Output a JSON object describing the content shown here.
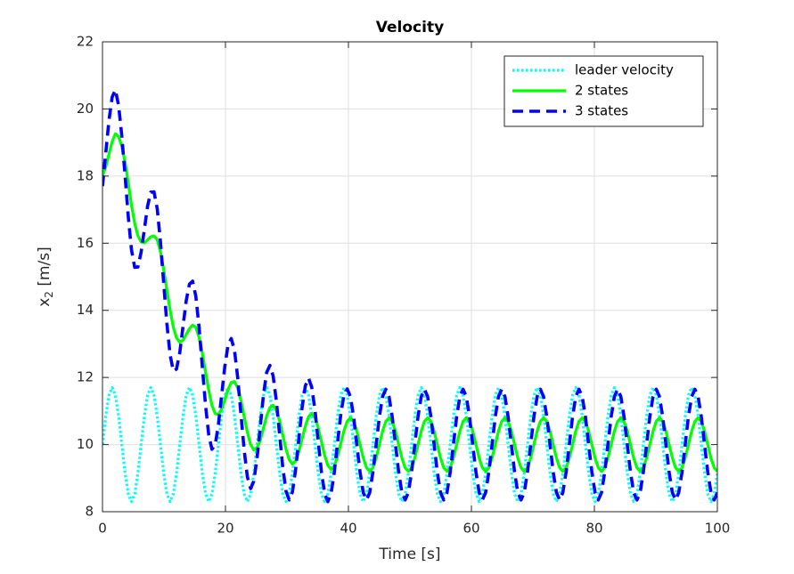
{
  "chart_data": {
    "type": "line",
    "title": "Velocity",
    "xlabel": "Time [s]",
    "ylabel": "x_2 [m/s]",
    "xlim": [
      0,
      100
    ],
    "ylim": [
      8,
      22
    ],
    "xticks": [
      0,
      20,
      40,
      60,
      80,
      100
    ],
    "yticks": [
      8,
      10,
      12,
      14,
      16,
      18,
      20,
      22
    ],
    "grid": true,
    "legend": "northeast",
    "x": [
      0,
      0.52,
      1.05,
      1.57,
      2.09,
      2.62,
      3.14,
      3.67,
      4.19,
      4.71,
      5.24,
      5.76,
      6.28,
      6.81,
      7.33,
      7.85,
      8.38,
      8.9,
      9.42,
      9.95,
      10.47,
      11,
      11.52,
      12.04,
      12.57,
      13.09,
      13.61,
      14.14,
      14.66,
      15.18,
      15.71,
      16.23,
      16.76,
      17.28,
      17.8,
      18.33,
      18.85,
      19.37,
      19.9,
      20.42,
      20.94,
      21.47,
      21.99,
      22.51,
      23.04,
      23.56,
      24.09,
      24.61,
      25.13,
      25.66,
      26.18,
      26.7,
      27.23,
      27.75,
      28.27,
      28.8,
      29.32,
      29.85,
      30.37,
      30.89,
      31.42,
      31.94,
      32.46,
      32.99,
      33.51,
      34.03,
      34.56,
      35.08,
      35.6,
      36.13,
      36.65,
      37.18,
      37.7,
      38.22,
      38.75,
      39.27,
      39.79,
      40.32,
      40.84,
      41.36,
      41.89,
      42.41,
      42.94,
      43.46,
      43.98,
      44.51,
      45.03,
      45.55,
      46.08,
      46.6,
      47.12,
      47.65,
      48.17,
      48.69,
      49.22,
      49.74,
      50.27,
      50.79,
      51.31,
      51.84,
      52.36,
      52.88,
      53.41,
      53.93,
      54.45,
      54.98,
      55.5,
      56.03,
      56.55,
      57.07,
      57.6,
      58.12,
      58.64,
      59.17,
      59.69,
      60.21,
      60.74,
      61.26,
      61.78,
      62.31,
      62.83,
      63.36,
      63.88,
      64.4,
      64.93,
      65.45,
      65.97,
      66.5,
      67.02,
      67.54,
      68.07,
      68.59,
      69.12,
      69.64,
      70.16,
      70.69,
      71.21,
      71.73,
      72.26,
      72.78,
      73.3,
      73.83,
      74.35,
      74.87,
      75.4,
      75.92,
      76.45,
      76.97,
      77.49,
      78.02,
      78.54,
      79.06,
      79.59,
      80.11,
      80.63,
      81.16,
      81.68,
      82.2,
      82.73,
      83.25,
      83.78,
      84.3,
      84.82,
      85.35,
      85.87,
      86.39,
      86.92,
      87.44,
      87.96,
      88.49,
      89.01,
      89.54,
      90.06,
      90.58,
      91.11,
      91.63,
      92.15,
      92.68,
      93.2,
      93.72,
      94.25,
      94.77,
      95.29,
      95.82,
      96.34,
      96.87,
      97.39,
      97.91,
      98.44,
      98.96,
      99.48,
      100
    ],
    "series": [
      {
        "name": "leader velocity",
        "color": "#00ffff",
        "linestyle": "dotted",
        "values": [
          10,
          10.85,
          11.47,
          11.7,
          11.47,
          10.85,
          10,
          9.15,
          8.53,
          8.3,
          8.53,
          9.15,
          10,
          10.85,
          11.47,
          11.7,
          11.47,
          10.85,
          10,
          9.15,
          8.53,
          8.3,
          8.53,
          9.15,
          10,
          10.85,
          11.47,
          11.7,
          11.47,
          10.85,
          10,
          9.15,
          8.53,
          8.3,
          8.53,
          9.15,
          10,
          10.85,
          11.47,
          11.7,
          11.47,
          10.85,
          10,
          9.15,
          8.53,
          8.3,
          8.53,
          9.15,
          10,
          10.85,
          11.47,
          11.7,
          11.47,
          10.85,
          10,
          9.15,
          8.53,
          8.3,
          8.53,
          9.15,
          10,
          10.85,
          11.47,
          11.7,
          11.47,
          10.85,
          10,
          9.15,
          8.53,
          8.3,
          8.53,
          9.15,
          10,
          10.85,
          11.47,
          11.7,
          11.47,
          10.85,
          10,
          9.15,
          8.53,
          8.3,
          8.53,
          9.15,
          10,
          10.85,
          11.47,
          11.7,
          11.47,
          10.85,
          10,
          9.15,
          8.53,
          8.3,
          8.53,
          9.15,
          10,
          10.85,
          11.47,
          11.7,
          11.47,
          10.85,
          10,
          9.15,
          8.53,
          8.3,
          8.53,
          9.15,
          10,
          10.85,
          11.47,
          11.7,
          11.47,
          10.85,
          10,
          9.15,
          8.53,
          8.3,
          8.53,
          9.15,
          10,
          10.85,
          11.47,
          11.7,
          11.47,
          10.85,
          10,
          9.15,
          8.53,
          8.3,
          8.53,
          9.15,
          10,
          10.85,
          11.47,
          11.7,
          11.47,
          10.85,
          10,
          9.15,
          8.53,
          8.3,
          8.53,
          9.15,
          10,
          10.85,
          11.47,
          11.7,
          11.47,
          10.85,
          10,
          9.15,
          8.53,
          8.3,
          8.53,
          9.15,
          10,
          10.85,
          11.47,
          11.7,
          11.47,
          10.85,
          10,
          9.15,
          8.53,
          8.3,
          8.53,
          9.15,
          10,
          10.85,
          11.47,
          11.7,
          11.47,
          10.85,
          10,
          9.15,
          8.53,
          8.3,
          8.53,
          9.15,
          10,
          10.85,
          11.47,
          11.7,
          11.47,
          10.85,
          10,
          9.15,
          8.53,
          8.3,
          8.53,
          9.15
        ]
      },
      {
        "name": "2 states",
        "color": "#00ff00",
        "linestyle": "solid",
        "values": [
          18.01,
          18.27,
          18.65,
          19.02,
          19.26,
          19.18,
          18.89,
          18.42,
          17.8,
          17.14,
          16.59,
          16.22,
          16.04,
          16.01,
          16.1,
          16.19,
          16.22,
          16.1,
          15.75,
          15.22,
          14.61,
          14.0,
          13.5,
          13.18,
          13.05,
          13.11,
          13.28,
          13.45,
          13.56,
          13.49,
          13.19,
          12.73,
          12.17,
          11.62,
          11.17,
          10.92,
          10.9,
          11.06,
          11.33,
          11.64,
          11.85,
          11.88,
          11.69,
          11.32,
          10.84,
          10.37,
          10.0,
          9.84,
          9.9,
          10.13,
          10.49,
          10.85,
          11.1,
          11.17,
          11.03,
          10.71,
          10.28,
          9.86,
          9.55,
          9.42,
          9.51,
          9.79,
          10.17,
          10.55,
          10.83,
          10.93,
          10.81,
          10.5,
          10.09,
          9.68,
          9.38,
          9.26,
          9.36,
          9.64,
          10.03,
          10.41,
          10.69,
          10.8,
          10.69,
          10.4,
          10,
          9.6,
          9.31,
          9.2,
          9.31,
          9.6,
          10,
          10.4,
          10.69,
          10.8,
          10.69,
          10.4,
          10,
          9.6,
          9.31,
          9.2,
          9.31,
          9.6,
          10,
          10.4,
          10.69,
          10.8,
          10.69,
          10.4,
          10,
          9.6,
          9.31,
          9.2,
          9.31,
          9.6,
          10,
          10.4,
          10.69,
          10.8,
          10.69,
          10.4,
          10,
          9.6,
          9.31,
          9.2,
          9.31,
          9.6,
          10,
          10.4,
          10.69,
          10.8,
          10.69,
          10.4,
          10,
          9.6,
          9.31,
          9.2,
          9.31,
          9.6,
          10,
          10.4,
          10.69,
          10.8,
          10.69,
          10.4,
          10,
          9.6,
          9.31,
          9.2,
          9.31,
          9.6,
          10,
          10.4,
          10.69,
          10.8,
          10.69,
          10.4,
          10,
          9.6,
          9.31,
          9.2,
          9.31,
          9.6,
          10,
          10.4,
          10.69,
          10.8,
          10.69,
          10.4,
          10,
          9.6,
          9.31,
          9.2,
          9.31,
          9.6,
          10,
          10.4,
          10.69,
          10.8,
          10.69,
          10.4,
          10,
          9.6,
          9.31,
          9.2,
          9.31,
          9.6,
          10,
          10.4,
          10.69,
          10.8,
          10.69,
          10.4,
          10,
          9.6,
          9.31,
          9.2
        ]
      },
      {
        "name": "3 states",
        "color": "#0000ff",
        "linestyle": "dashed",
        "values": [
          17.7,
          18.67,
          19.65,
          20.35,
          20.57,
          20.11,
          19.2,
          18.02,
          16.8,
          15.81,
          15.28,
          15.29,
          15.73,
          16.41,
          17.1,
          17.52,
          17.53,
          17.03,
          16.06,
          14.82,
          13.61,
          12.67,
          12.19,
          12.25,
          12.74,
          13.51,
          14.28,
          14.78,
          14.87,
          14.42,
          13.5,
          12.33,
          11.17,
          10.29,
          9.86,
          9.99,
          10.59,
          11.46,
          12.33,
          12.97,
          13.16,
          12.81,
          12.0,
          10.92,
          9.84,
          9.04,
          8.69,
          8.91,
          9.59,
          10.53,
          11.48,
          12.15,
          12.36,
          12.05,
          11.31,
          10.31,
          9.32,
          8.61,
          8.35,
          8.59,
          9.27,
          10.19,
          11.1,
          11.75,
          11.98,
          11.71,
          11.03,
          10.1,
          9.2,
          8.54,
          8.3,
          8.54,
          9.18,
          10.04,
          10.89,
          11.48,
          11.66,
          11.43,
          10.83,
          10,
          9.18,
          8.57,
          8.35,
          8.57,
          9.18,
          10,
          10.83,
          11.43,
          11.65,
          11.43,
          10.83,
          10,
          9.18,
          8.57,
          8.35,
          8.57,
          9.18,
          10,
          10.83,
          11.43,
          11.65,
          11.43,
          10.83,
          10,
          9.18,
          8.57,
          8.35,
          8.57,
          9.18,
          10,
          10.83,
          11.43,
          11.65,
          11.43,
          10.83,
          10,
          9.18,
          8.57,
          8.35,
          8.57,
          9.18,
          10,
          10.83,
          11.43,
          11.65,
          11.43,
          10.83,
          10,
          9.18,
          8.57,
          8.35,
          8.57,
          9.18,
          10,
          10.83,
          11.43,
          11.65,
          11.43,
          10.83,
          10,
          9.18,
          8.57,
          8.35,
          8.57,
          9.18,
          10,
          10.83,
          11.43,
          11.65,
          11.43,
          10.83,
          10,
          9.18,
          8.57,
          8.35,
          8.57,
          9.18,
          10,
          10.83,
          11.43,
          11.65,
          11.43,
          10.83,
          10,
          9.18,
          8.57,
          8.35,
          8.57,
          9.18,
          10,
          10.83,
          11.43,
          11.65,
          11.43,
          10.83,
          10,
          9.18,
          8.57,
          8.35,
          8.57,
          9.18,
          10,
          10.83,
          11.43,
          11.65,
          11.43,
          10.83,
          10,
          9.18,
          8.57,
          8.35,
          8.57
        ]
      }
    ]
  }
}
